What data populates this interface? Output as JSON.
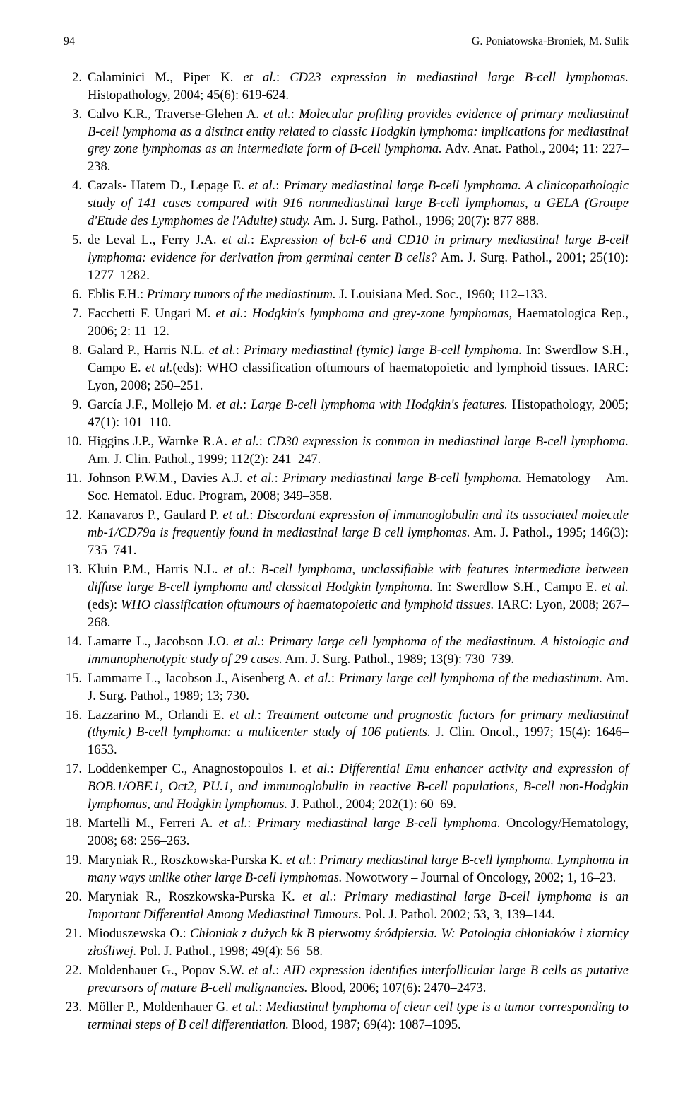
{
  "page_number": "94",
  "header_authors": "G. Poniatowska-Broniek, M. Sulik",
  "references": [
    {
      "num": "2.",
      "text": "Calaminici M., Piper K. <i>et al.</i>: <i>CD23 expression in mediastinal large B-cell lymphomas.</i> Histopathology, 2004; 45(6): 619-624."
    },
    {
      "num": "3.",
      "text": "Calvo K.R., Traverse-Glehen A. <i>et al.</i>: <i>Molecular profiling provides evidence of primary mediastinal B-cell lymphoma as a distinct entity related to classic Hodgkin lymphoma: implications for mediastinal grey zone lymphomas as an intermediate form of B-cell lymphoma.</i> Adv. Anat. Pathol., 2004; 11: 227–238."
    },
    {
      "num": "4.",
      "text": "Cazals- Hatem D., Lepage E. <i>et al.</i>: <i>Primary mediastinal large B-cell lymphoma. A clinicopathologic study of 141 cases compared with 916 nonmediastinal large B-cell lymphomas, a GELA (Groupe d'Etude des Lymphomes de l'Adulte) study.</i> Am. J. Surg. Pathol., 1996; 20(7): 877 888."
    },
    {
      "num": "5.",
      "text": "de Leval L., Ferry J.A. <i>et al.</i>: <i>Expression of bcl-6 and CD10 in primary mediastinal large B-cell lymphoma: evidence for derivation from germinal center B cells?</i> Am. J. Surg. Pathol., 2001; 25(10): 1277–1282."
    },
    {
      "num": "6.",
      "text": "Eblis F.H.: <i>Primary tumors of the mediastinum.</i> J. Louisiana Med. Soc., 1960; 112–133."
    },
    {
      "num": "7.",
      "text": "Facchetti F. Ungari M. <i>et al.</i>: <i>Hodgkin's lymphoma and grey-zone lymphomas,</i> Haematologica Rep., 2006; 2: 11–12."
    },
    {
      "num": "8.",
      "text": "Galard P., Harris N.L. <i>et al.</i>: <i>Primary mediastinal (tymic) large B-cell lymphoma.</i> In: Swerdlow S.H., Campo E. <i>et al.</i>(eds): WHO classification oftumours of haematopoietic and lymphoid tissues. IARC: Lyon, 2008; 250–251."
    },
    {
      "num": "9.",
      "text": "García J.F., Mollejo M. <i>et al.</i>: <i>Large B-cell lymphoma with Hodgkin's features.</i> Histopathology, 2005; 47(1): 101–110."
    },
    {
      "num": "10.",
      "text": "Higgins J.P., Warnke R.A. <i>et al.</i>: <i>CD30 expression is common in mediastinal large B-cell lymphoma.</i> Am. J. Clin. Pathol., 1999; 112(2): 241–247."
    },
    {
      "num": "11.",
      "text": "Johnson P.W.M., Davies A.J. <i>et al.</i>: <i>Primary mediastinal large B-cell lymphoma.</i> Hematology – Am. Soc. Hematol. Educ. Program, 2008; 349–358."
    },
    {
      "num": "12.",
      "text": "Kanavaros P., Gaulard P. <i>et al.</i>: <i>Discordant expression of immunoglobulin and its associated molecule mb-1/CD79a is frequently found in mediastinal large B cell lymphomas.</i> Am. J. Pathol., 1995; 146(3): 735–741."
    },
    {
      "num": "13.",
      "text": "Kluin P.M., Harris N.L. <i>et al.</i>: <i>B-cell lymphoma, unclassifiable with features intermediate between diffuse large B-cell lymphoma and classical Hodgkin lymphoma.</i> In: Swerdlow S.H., Campo E. <i>et al.</i> (eds): <i>WHO classification oftumours of haematopoietic and lymphoid tissues.</i> IARC: Lyon, 2008; 267–268."
    },
    {
      "num": "14.",
      "text": "Lamarre L., Jacobson J.O. <i>et al.</i>: <i>Primary large cell lymphoma of the mediastinum. A histologic and immunophenotypic study of 29 cases.</i> Am. J. Surg. Pathol., 1989; 13(9): 730–739."
    },
    {
      "num": "15.",
      "text": "Lammarre L., Jacobson J., Aisenberg A. <i>et al.</i>: <i>Primary large cell lymphoma of the mediastinum.</i> Am. J. Surg. Pathol., 1989; 13; 730."
    },
    {
      "num": "16.",
      "text": "Lazzarino M., Orlandi E. <i>et al.</i>: <i>Treatment outcome and prognostic factors for primary mediastinal (thymic) B-cell lymphoma: a multicenter study of 106 patients.</i> J. Clin. Oncol., 1997; 15(4): 1646–1653."
    },
    {
      "num": "17.",
      "text": "Loddenkemper C., Anagnostopoulos I. <i>et al.</i>: <i>Differential Emu enhancer activity and expression of BOB.1/OBF.1, Oct2, PU.1, and immunoglobulin in reactive B-cell populations, B-cell non-Hodgkin lymphomas, and Hodgkin lymphomas.</i> J. Pathol., 2004; 202(1): 60–69."
    },
    {
      "num": "18.",
      "text": "Martelli M., Ferreri A. <i>et al.</i>: <i>Primary mediastinal large B-cell lymphoma.</i> Oncology/Hematology, 2008; 68: 256–263."
    },
    {
      "num": "19.",
      "text": "Maryniak R., Roszkowska-Purska K. <i>et al.</i>: <i>Primary mediastinal large B-cell lymphoma. Lymphoma in many ways unlike other large B-cell lymphomas.</i> Nowotwory – Journal of Oncology, 2002; 1, 16–23."
    },
    {
      "num": "20.",
      "text": "Maryniak R., Roszkowska-Purska K. <i>et al.</i>: <i>Primary mediastinal large B-cell lymphoma is an Important Differential Among Mediastinal Tumours.</i> Pol. J. Pathol. 2002; 53, 3, 139–144."
    },
    {
      "num": "21.",
      "text": "Mioduszewska O.: <i>Chłoniak z dużych kk B pierwotny śródpiersia. W: Patologia chłoniaków i ziarnicy złośliwej.</i> Pol. J. Pathol., 1998; 49(4): 56–58."
    },
    {
      "num": "22.",
      "text": "Moldenhauer G., Popov S.W. <i>et al.</i>: <i>AID expression identifies interfollicular large B cells as putative precursors of mature B-cell malignancies.</i> Blood, 2006; 107(6): 2470–2473."
    },
    {
      "num": "23.",
      "text": "Möller P., Moldenhauer G. <i>et al.</i>: <i>Mediastinal lymphoma of clear cell type is a tumor corresponding to terminal steps of B cell differentiation.</i> Blood, 1987; 69(4): 1087–1095."
    }
  ]
}
